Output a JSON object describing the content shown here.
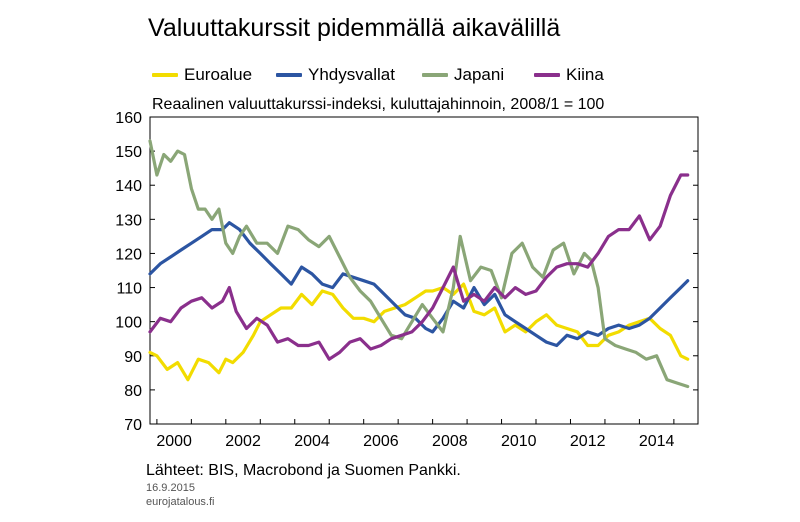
{
  "title": "Valuuttakurssit pidemmällä aikavälillä",
  "subtitle": "Reaalinen valuuttakurssi-indeksi, kuluttajahinnoin, 2008/1 = 100",
  "source": "Lähteet: BIS, Macrobond ja Suomen Pankki.",
  "date": "16.9.2015",
  "site": "eurojatalous.fi",
  "chart_data": {
    "type": "line",
    "title": "Valuuttakurssit pidemmällä aikavälillä",
    "subtitle": "Reaalinen valuuttakurssi-indeksi, kuluttajahinnoin, 2008/1 = 100",
    "xlabel": "",
    "ylabel": "",
    "xlim": [
      1999.8,
      2015.7
    ],
    "ylim": [
      70,
      160
    ],
    "yticks": [
      70,
      80,
      90,
      100,
      110,
      120,
      130,
      140,
      150,
      160
    ],
    "xtick_labels": [
      "2000",
      "2002",
      "2004",
      "2006",
      "2008",
      "2010",
      "2012",
      "2014"
    ],
    "grid": false,
    "legend_position": "top",
    "series": [
      {
        "name": "Euroalue",
        "color": "#f2dc00",
        "x": [
          1999.8,
          2000.0,
          2000.3,
          2000.6,
          2000.9,
          2001.2,
          2001.5,
          2001.8,
          2002.0,
          2002.2,
          2002.5,
          2002.8,
          2003.0,
          2003.3,
          2003.6,
          2003.9,
          2004.2,
          2004.5,
          2004.8,
          2005.1,
          2005.4,
          2005.7,
          2006.0,
          2006.3,
          2006.6,
          2006.9,
          2007.2,
          2007.5,
          2007.8,
          2008.0,
          2008.3,
          2008.6,
          2008.9,
          2009.2,
          2009.5,
          2009.8,
          2010.1,
          2010.4,
          2010.7,
          2011.0,
          2011.3,
          2011.6,
          2011.9,
          2012.2,
          2012.5,
          2012.8,
          2013.1,
          2013.4,
          2013.7,
          2014.0,
          2014.3,
          2014.6,
          2014.9,
          2015.2,
          2015.4
        ],
        "values": [
          91,
          90,
          86,
          88,
          83,
          89,
          88,
          85,
          89,
          88,
          91,
          96,
          100,
          102,
          104,
          104,
          108,
          105,
          109,
          108,
          104,
          101,
          101,
          100,
          103,
          104,
          105,
          107,
          109,
          109,
          110,
          108,
          111,
          103,
          102,
          104,
          97,
          99,
          97,
          100,
          102,
          99,
          98,
          97,
          93,
          93,
          96,
          97,
          99,
          100,
          101,
          98,
          96,
          90,
          89
        ]
      },
      {
        "name": "Yhdysvallat",
        "color": "#2c55a2",
        "x": [
          1999.8,
          2000.1,
          2000.4,
          2000.7,
          2001.0,
          2001.3,
          2001.6,
          2001.9,
          2002.1,
          2002.4,
          2002.7,
          2003.0,
          2003.3,
          2003.6,
          2003.9,
          2004.2,
          2004.5,
          2004.8,
          2005.1,
          2005.4,
          2005.7,
          2006.0,
          2006.3,
          2006.6,
          2006.9,
          2007.2,
          2007.5,
          2007.8,
          2008.0,
          2008.3,
          2008.6,
          2008.9,
          2009.2,
          2009.5,
          2009.8,
          2010.1,
          2010.4,
          2010.7,
          2011.0,
          2011.3,
          2011.6,
          2011.9,
          2012.2,
          2012.5,
          2012.8,
          2013.1,
          2013.4,
          2013.7,
          2014.0,
          2014.3,
          2014.6,
          2014.9,
          2015.2,
          2015.4
        ],
        "values": [
          114,
          117,
          119,
          121,
          123,
          125,
          127,
          127,
          129,
          127,
          123,
          120,
          117,
          114,
          111,
          116,
          114,
          111,
          110,
          114,
          113,
          112,
          111,
          108,
          105,
          102,
          101,
          98,
          97,
          101,
          106,
          104,
          110,
          105,
          108,
          102,
          100,
          98,
          96,
          94,
          93,
          96,
          95,
          97,
          96,
          98,
          99,
          98,
          99,
          101,
          104,
          107,
          110,
          112
        ]
      },
      {
        "name": "Japani",
        "color": "#8aa677",
        "x": [
          1999.8,
          2000.0,
          2000.2,
          2000.4,
          2000.6,
          2000.8,
          2001.0,
          2001.2,
          2001.4,
          2001.6,
          2001.8,
          2002.0,
          2002.2,
          2002.4,
          2002.6,
          2002.9,
          2003.2,
          2003.5,
          2003.8,
          2004.1,
          2004.4,
          2004.7,
          2005.0,
          2005.3,
          2005.6,
          2005.9,
          2006.2,
          2006.5,
          2006.8,
          2007.1,
          2007.4,
          2007.7,
          2008.0,
          2008.3,
          2008.6,
          2008.8,
          2009.1,
          2009.4,
          2009.7,
          2010.0,
          2010.3,
          2010.6,
          2010.9,
          2011.2,
          2011.5,
          2011.8,
          2012.1,
          2012.4,
          2012.6,
          2012.8,
          2013.0,
          2013.3,
          2013.6,
          2013.9,
          2014.2,
          2014.5,
          2014.8,
          2015.1,
          2015.4
        ],
        "values": [
          153,
          143,
          149,
          147,
          150,
          149,
          139,
          133,
          133,
          130,
          133,
          123,
          120,
          125,
          128,
          123,
          123,
          120,
          128,
          127,
          124,
          122,
          125,
          119,
          113,
          109,
          106,
          101,
          96,
          95,
          100,
          105,
          101,
          97,
          110,
          125,
          112,
          116,
          115,
          107,
          120,
          123,
          116,
          113,
          121,
          123,
          114,
          120,
          118,
          110,
          95,
          93,
          92,
          91,
          89,
          90,
          83,
          82,
          81
        ]
      },
      {
        "name": "Kiina",
        "color": "#8a2f8c",
        "x": [
          1999.8,
          2000.1,
          2000.4,
          2000.7,
          2001.0,
          2001.3,
          2001.6,
          2001.9,
          2002.1,
          2002.3,
          2002.6,
          2002.9,
          2003.2,
          2003.5,
          2003.8,
          2004.1,
          2004.4,
          2004.7,
          2005.0,
          2005.3,
          2005.6,
          2005.9,
          2006.2,
          2006.5,
          2006.8,
          2007.1,
          2007.4,
          2007.7,
          2008.0,
          2008.3,
          2008.6,
          2008.9,
          2009.2,
          2009.5,
          2009.8,
          2010.1,
          2010.4,
          2010.7,
          2011.0,
          2011.3,
          2011.6,
          2011.9,
          2012.2,
          2012.5,
          2012.8,
          2013.1,
          2013.4,
          2013.7,
          2014.0,
          2014.3,
          2014.6,
          2014.9,
          2015.2,
          2015.4
        ],
        "values": [
          97,
          101,
          100,
          104,
          106,
          107,
          104,
          106,
          110,
          103,
          98,
          101,
          99,
          94,
          95,
          93,
          93,
          94,
          89,
          91,
          94,
          95,
          92,
          93,
          95,
          96,
          97,
          100,
          104,
          110,
          116,
          106,
          108,
          106,
          110,
          107,
          110,
          108,
          109,
          113,
          116,
          117,
          117,
          116,
          120,
          125,
          127,
          127,
          131,
          124,
          128,
          137,
          143,
          143
        ]
      }
    ]
  }
}
